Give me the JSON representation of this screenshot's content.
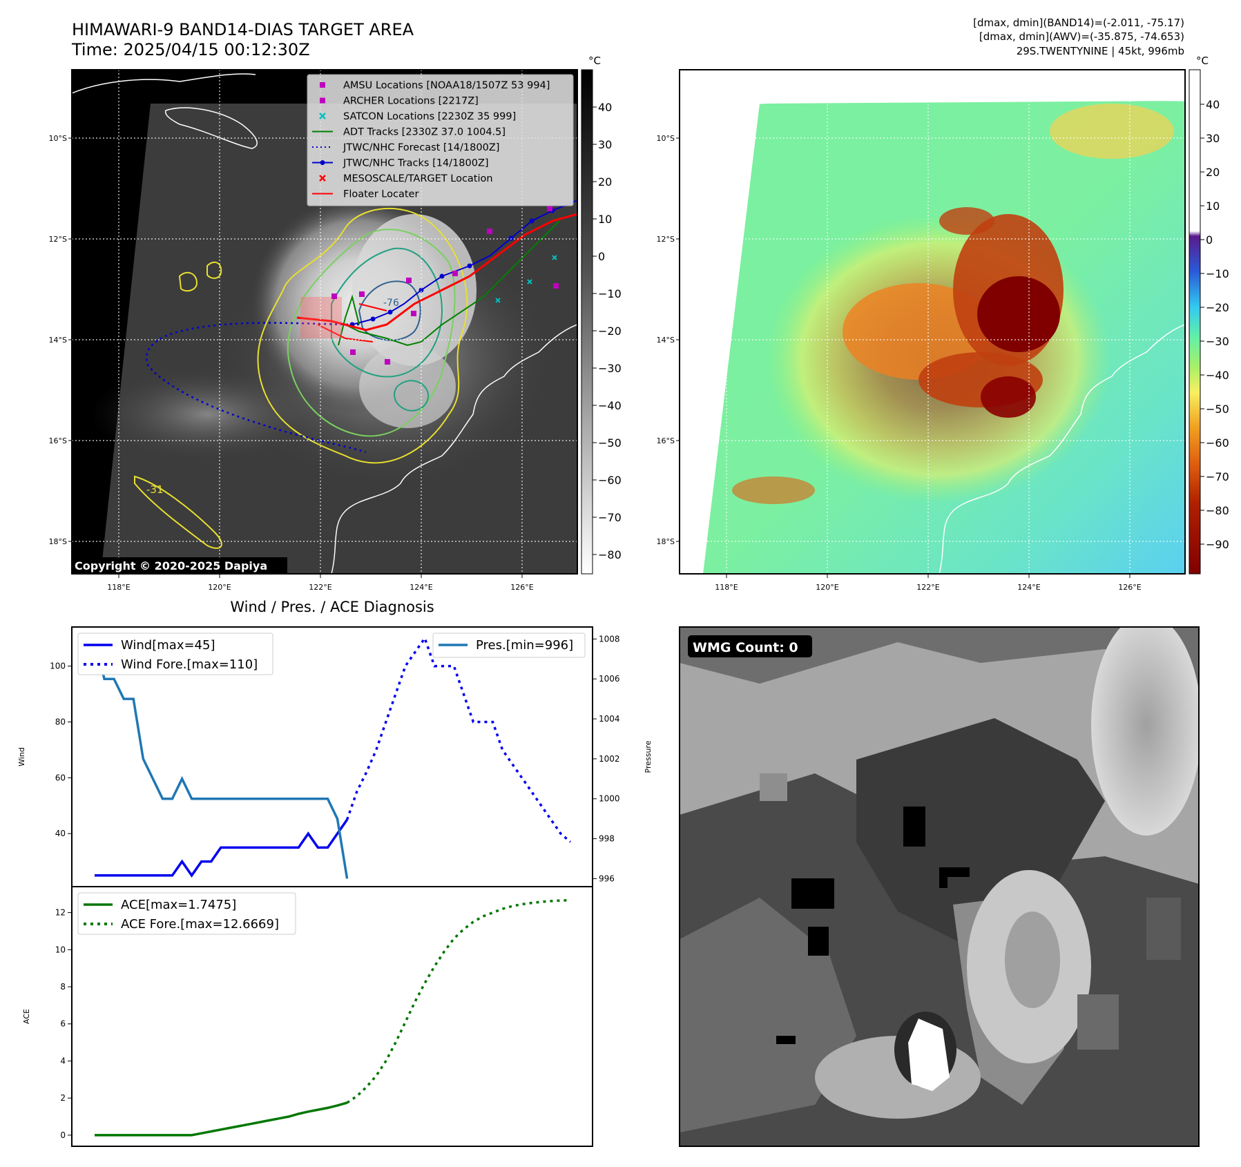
{
  "header": {
    "title_line1": "HIMAWARI-9 BAND14-DIAS TARGET AREA",
    "title_line2": "Time: 2025/04/15 00:12:30Z",
    "info_line1": "[dmax, dmin](BAND14)=(-2.011, -75.17)",
    "info_line2": "[dmax, dmin](AWV)=(-35.875, -74.653)",
    "info_line3": "29S.TWENTYNINE | 45kt, 996mb"
  },
  "map_axes": {
    "lat_labels": [
      "10°S",
      "12°S",
      "14°S",
      "16°S",
      "18°S"
    ],
    "lon_labels": [
      "118°E",
      "120°E",
      "122°E",
      "124°E",
      "126°E"
    ],
    "copyright": "Copyright © 2020-2025 Dapiya",
    "contour_labels": [
      "-31",
      "-76"
    ]
  },
  "colorbar_gray": {
    "unit": "°C",
    "ticks": [
      "40",
      "30",
      "20",
      "10",
      "0",
      "−10",
      "−20",
      "−30",
      "−40",
      "−50",
      "−60",
      "−70",
      "−80"
    ]
  },
  "colorbar_color": {
    "unit": "°C",
    "ticks": [
      "40",
      "30",
      "20",
      "10",
      "0",
      "−10",
      "−20",
      "−30",
      "−40",
      "−50",
      "−60",
      "−70",
      "−80",
      "−90"
    ]
  },
  "legend_map": [
    {
      "label": "AMSU Locations [NOAA18/1507Z 53 994]",
      "marker": "square",
      "color": "#bf00bf"
    },
    {
      "label": "ARCHER Locations [2217Z]",
      "marker": "square",
      "color": "#bf00bf"
    },
    {
      "label": "SATCON Locations [2230Z 35 999]",
      "marker": "x",
      "color": "#00bfbf"
    },
    {
      "label": "ADT Tracks [2330Z 37.0 1004.5]",
      "marker": "line",
      "color": "#008000"
    },
    {
      "label": "JTWC/NHC Forecast [14/1800Z]",
      "marker": "dotted",
      "color": "#0000cc"
    },
    {
      "label": "JTWC/NHC Tracks [14/1800Z]",
      "marker": "line-dot",
      "color": "#0000cc"
    },
    {
      "label": "MESOSCALE/TARGET Location",
      "marker": "x",
      "color": "#ff0000"
    },
    {
      "label": "Floater Locater",
      "marker": "line",
      "color": "#ff0000"
    }
  ],
  "wmg": {
    "label": "WMG Count: 0"
  },
  "colors": {
    "wind": "#0000ee",
    "pressure": "#1f77b4",
    "ace": "#007700",
    "magenta": "#bf00bf",
    "cyan": "#00bfbf",
    "red": "#ff0000"
  },
  "chart_data": [
    {
      "type": "line",
      "title": "Wind / Pres. / ACE Diagnosis",
      "ylabel": "Wind",
      "y2label": "Pressure",
      "ylim": [
        21,
        114
      ],
      "y2lim": [
        995.6,
        1008.6
      ],
      "yticks": [
        40,
        60,
        80,
        100
      ],
      "y2ticks": [
        996,
        998,
        1000,
        1002,
        1004,
        1006,
        1008
      ],
      "series": [
        {
          "name": "Wind[max=45]",
          "axis": "left",
          "style": "solid",
          "color": "#0000ee",
          "x": [
            0,
            1,
            2,
            3,
            4,
            5,
            6,
            7,
            8,
            9,
            10,
            11,
            12,
            13,
            14,
            15,
            16,
            17,
            18,
            19,
            20,
            21,
            22,
            23,
            24,
            25,
            26
          ],
          "y": [
            25,
            25,
            25,
            25,
            25,
            25,
            25,
            25,
            25,
            30,
            25,
            30,
            30,
            35,
            35,
            35,
            35,
            35,
            35,
            35,
            35,
            35,
            40,
            35,
            35,
            40,
            45
          ]
        },
        {
          "name": "Wind Fore.[max=110]",
          "axis": "left",
          "style": "dotted",
          "color": "#0000ee",
          "x": [
            26,
            27,
            28,
            29,
            30,
            31,
            32,
            33,
            34,
            35,
            36,
            37,
            38,
            39,
            40,
            41,
            42,
            43,
            44,
            45,
            46,
            47,
            48,
            49
          ],
          "y": [
            45,
            55,
            62,
            70,
            80,
            90,
            100,
            105,
            110,
            100,
            100,
            100,
            90,
            80,
            80,
            80,
            70,
            65,
            60,
            55,
            50,
            45,
            40,
            37
          ]
        },
        {
          "name": "Pres.[min=996]",
          "axis": "right",
          "style": "solid",
          "color": "#1f77b4",
          "x": [
            0,
            1,
            2,
            3,
            4,
            5,
            6,
            7,
            8,
            9,
            10,
            11,
            12,
            13,
            14,
            15,
            16,
            17,
            18,
            19,
            20,
            21,
            22,
            23,
            24,
            25,
            26
          ],
          "y": [
            1008,
            1006,
            1006,
            1005,
            1005,
            1002,
            1001,
            1000,
            1000,
            1001,
            1000,
            1000,
            1000,
            1000,
            1000,
            1000,
            1000,
            1000,
            1000,
            1000,
            1000,
            1000,
            1000,
            1000,
            1000,
            999,
            996
          ]
        }
      ]
    },
    {
      "type": "line",
      "ylabel": "ACE",
      "ylim": [
        -0.6,
        13.4
      ],
      "yticks": [
        0,
        2,
        4,
        6,
        8,
        10,
        12
      ],
      "series": [
        {
          "name": "ACE[max=1.7475]",
          "style": "solid",
          "color": "#007700",
          "x": [
            0,
            1,
            2,
            3,
            4,
            5,
            6,
            7,
            8,
            9,
            10,
            11,
            12,
            13,
            14,
            15,
            16,
            17,
            18,
            19,
            20,
            21,
            22,
            23,
            24,
            25,
            26
          ],
          "y": [
            0,
            0,
            0,
            0,
            0,
            0,
            0,
            0,
            0,
            0,
            0,
            0.1,
            0.2,
            0.3,
            0.4,
            0.5,
            0.6,
            0.7,
            0.8,
            0.9,
            1.0,
            1.15,
            1.27,
            1.37,
            1.47,
            1.6,
            1.75
          ]
        },
        {
          "name": "ACE Fore.[max=12.6669]",
          "style": "dotted",
          "color": "#007700",
          "x": [
            26,
            27,
            28,
            29,
            30,
            31,
            32,
            33,
            34,
            35,
            36,
            37,
            38,
            39,
            40,
            41,
            42,
            43,
            44,
            45,
            46,
            47,
            48,
            49
          ],
          "y": [
            1.75,
            2.1,
            2.6,
            3.2,
            4.0,
            5.0,
            6.1,
            7.2,
            8.2,
            9.1,
            9.9,
            10.6,
            11.1,
            11.5,
            11.8,
            12.0,
            12.2,
            12.35,
            12.45,
            12.52,
            12.58,
            12.62,
            12.65,
            12.67
          ]
        }
      ]
    }
  ]
}
